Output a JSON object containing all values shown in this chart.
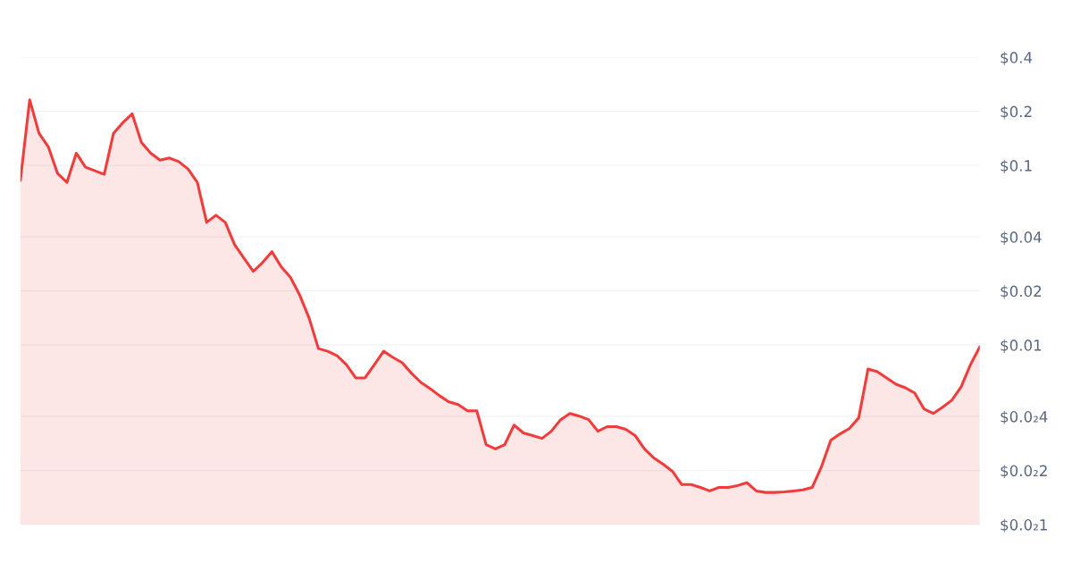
{
  "chart_data": {
    "type": "area",
    "log": "y",
    "grid": "y",
    "line_style": "solid",
    "categories": [
      null,
      null,
      null,
      null,
      null,
      null,
      null,
      null,
      null,
      null,
      null,
      null,
      null,
      null,
      null,
      null,
      null,
      null,
      null,
      null,
      null,
      null,
      null,
      null,
      null,
      null,
      null,
      null,
      null,
      null,
      null,
      null,
      null,
      null,
      null,
      null,
      null,
      null,
      null,
      null,
      null,
      null,
      null,
      null,
      null,
      null,
      null,
      null,
      null,
      null,
      null,
      null,
      null,
      null,
      null,
      null,
      null,
      null,
      null,
      null,
      null,
      null,
      null,
      null,
      null,
      null,
      null,
      null,
      null,
      null,
      null,
      null,
      null,
      null,
      null,
      null,
      null,
      null,
      null,
      null,
      null,
      null,
      null,
      null,
      null,
      null,
      null,
      null,
      null,
      null,
      null,
      null,
      null,
      null,
      null,
      null,
      null,
      null,
      null,
      null,
      null,
      null,
      null,
      null
    ],
    "series": [
      {
        "color": "#f23c3c",
        "values": [
          0.0824,
          0.232,
          0.151,
          0.127,
          0.0902,
          0.0805,
          0.117,
          0.0977,
          0.0934,
          0.0892,
          0.151,
          0.173,
          0.194,
          0.134,
          0.117,
          0.107,
          0.11,
          0.105,
          0.0955,
          0.0805,
          0.0482,
          0.0528,
          0.0482,
          0.0362,
          0.0305,
          0.0257,
          0.0288,
          0.0331,
          0.0273,
          0.0238,
          0.0189,
          0.0141,
          0.00955,
          0.00923,
          0.00872,
          0.00778,
          0.00656,
          0.00656,
          0.00778,
          0.00923,
          0.00853,
          0.00796,
          0.00695,
          0.00619,
          0.00571,
          0.00522,
          0.00482,
          0.00466,
          0.0043,
          0.0043,
          0.00279,
          0.00264,
          0.00279,
          0.00358,
          0.00324,
          0.00313,
          0.00302,
          0.00331,
          0.00384,
          0.00416,
          0.00402,
          0.00384,
          0.00331,
          0.00351,
          0.00351,
          0.00339,
          0.00313,
          0.00264,
          0.00235,
          0.00217,
          0.00198,
          0.00167,
          0.00167,
          0.00161,
          0.00154,
          0.00161,
          0.00161,
          0.00165,
          0.00171,
          0.00154,
          0.00151,
          0.00151,
          0.00152,
          0.00154,
          0.00156,
          0.00161,
          0.0021,
          0.00295,
          0.0032,
          0.00343,
          0.00393,
          0.00735,
          0.0071,
          0.00656,
          0.00605,
          0.00578,
          0.00541,
          0.00441,
          0.00416,
          0.0045,
          0.00493,
          0.00585,
          0.00778,
          0.00977
        ]
      }
    ],
    "ylim": [
      0.001,
      0.4
    ],
    "yticks": [
      {
        "value": 0.4,
        "label": "$0.4"
      },
      {
        "value": 0.2,
        "label": "$0.2"
      },
      {
        "value": 0.1,
        "label": "$0.1"
      },
      {
        "value": 0.04,
        "label": "$0.04"
      },
      {
        "value": 0.02,
        "label": "$0.02"
      },
      {
        "value": 0.01,
        "label": "$0.01"
      },
      {
        "value": 0.004,
        "label": "$0.0₂4"
      },
      {
        "value": 0.002,
        "label": "$0.0₂2"
      },
      {
        "value": 0.001,
        "label": "$0.0₂1"
      }
    ],
    "tick_labels": "y"
  }
}
